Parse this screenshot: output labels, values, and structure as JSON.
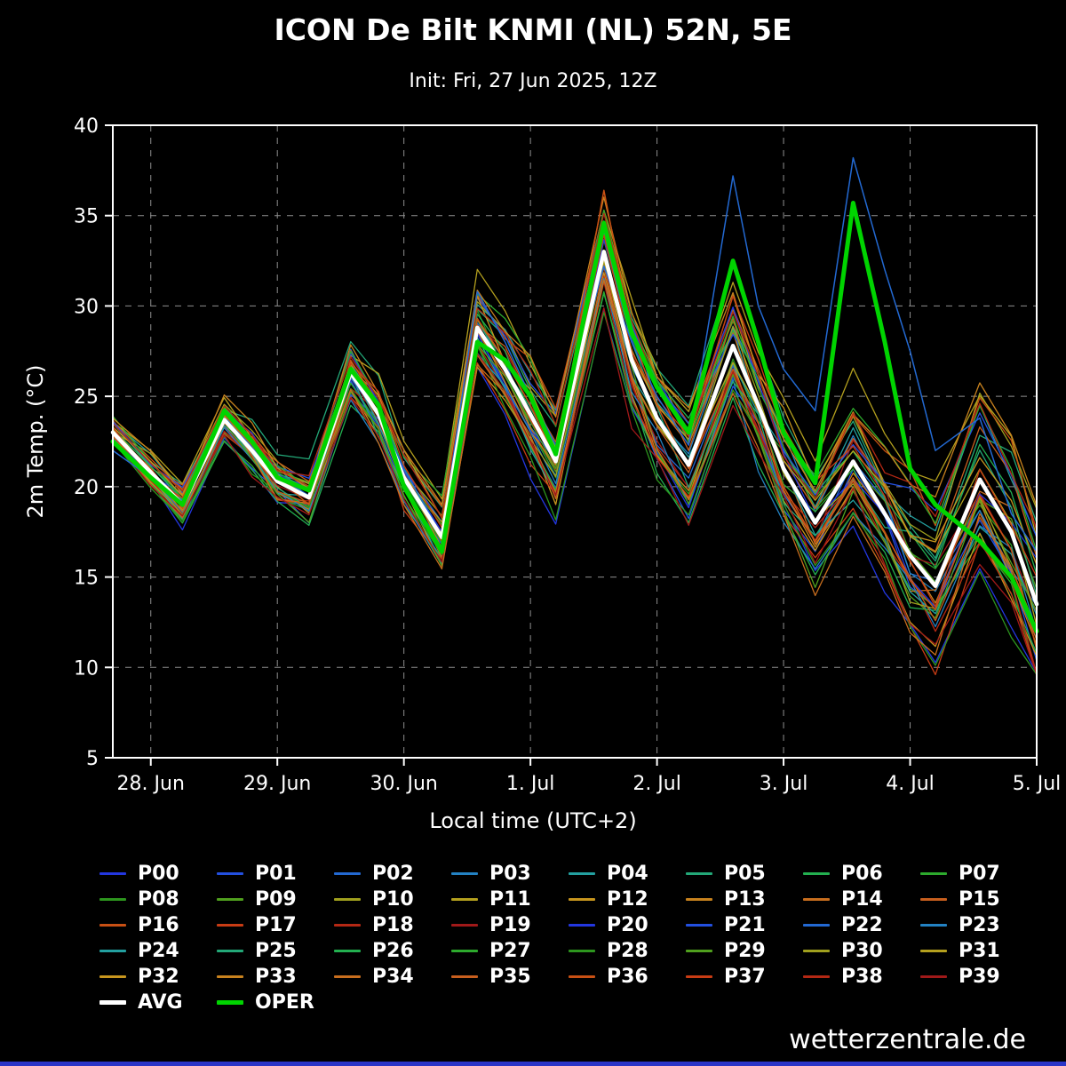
{
  "header": {
    "title": "ICON De Bilt KNMI (NL) 52N, 5E",
    "subtitle": "Init: Fri, 27 Jun 2025, 12Z"
  },
  "footer": {
    "brand": "wetterzentrale.de"
  },
  "legend": {
    "avg_label": "AVG",
    "oper_label": "OPER"
  },
  "chart_data": {
    "type": "line",
    "title": "ICON De Bilt KNMI (NL) 52N, 5E",
    "subtitle": "Init: Fri, 27 Jun 2025, 12Z",
    "xlabel": "Local time (UTC+2)",
    "ylabel": "2m Temp. (°C)",
    "ylim": [
      5,
      40
    ],
    "yticks": [
      5,
      10,
      15,
      20,
      25,
      30,
      35,
      40
    ],
    "xlim_days": [
      -0.3,
      7
    ],
    "grid": true,
    "legend_position": "bottom",
    "xticks": [
      {
        "day": 0,
        "label": "28. Jun"
      },
      {
        "day": 1,
        "label": "29. Jun"
      },
      {
        "day": 2,
        "label": "30. Jun"
      },
      {
        "day": 3,
        "label": "1. Jul"
      },
      {
        "day": 4,
        "label": "2. Jul"
      },
      {
        "day": 5,
        "label": "3. Jul"
      },
      {
        "day": 6,
        "label": "4. Jul"
      },
      {
        "day": 7,
        "label": "5. Jul"
      }
    ],
    "x_days": [
      -0.3,
      0.0,
      0.25,
      0.58,
      0.8,
      1.0,
      1.25,
      1.58,
      1.8,
      2.0,
      2.3,
      2.58,
      2.8,
      3.0,
      3.2,
      3.58,
      3.8,
      4.0,
      4.25,
      4.6,
      4.8,
      5.0,
      5.25,
      5.55,
      5.8,
      6.0,
      6.2,
      6.55,
      6.8,
      7.0
    ],
    "series": [
      {
        "name": "AVG",
        "color": "#ffffff",
        "width": 4.5,
        "values": [
          23.0,
          20.8,
          19.0,
          23.7,
          22.0,
          20.3,
          19.4,
          26.3,
          24.0,
          20.5,
          17.2,
          28.8,
          26.5,
          24.0,
          21.4,
          33.0,
          27.0,
          23.8,
          21.2,
          27.8,
          24.5,
          21.0,
          18.0,
          21.4,
          18.5,
          16.2,
          14.5,
          20.4,
          17.5,
          13.5
        ]
      },
      {
        "name": "OPER",
        "color": "#00d400",
        "width": 5,
        "values": [
          22.5,
          20.5,
          19.0,
          24.2,
          22.5,
          20.5,
          19.8,
          26.5,
          24.5,
          20.0,
          16.4,
          28.0,
          27.0,
          25.0,
          21.8,
          34.6,
          28.5,
          25.5,
          23.0,
          32.5,
          28.0,
          23.0,
          20.2,
          35.7,
          28.0,
          21.0,
          19.0,
          17.0,
          15.0,
          12.0
        ]
      }
    ],
    "featured_members": [
      {
        "name": "P22",
        "color": "#2369d2",
        "values": [
          22.0,
          20.5,
          19.2,
          23.8,
          22.2,
          20.6,
          19.5,
          26.0,
          24.0,
          21.0,
          17.3,
          30.8,
          28.0,
          25.0,
          22.3,
          32.2,
          28.0,
          25.0,
          22.3,
          37.2,
          30.0,
          26.5,
          24.2,
          38.2,
          32.0,
          27.5,
          22.0,
          23.8,
          18.5,
          16.4
        ]
      },
      {
        "name": "P36",
        "color": "#c85014",
        "values": [
          23.0,
          21.0,
          18.8,
          24.0,
          22.3,
          20.5,
          19.0,
          27.0,
          24.5,
          20.5,
          17.0,
          29.3,
          27.0,
          24.5,
          21.5,
          36.4,
          28.5,
          24.5,
          21.0,
          26.5,
          23.5,
          20.0,
          17.0,
          20.5,
          17.5,
          14.8,
          13.2,
          19.5,
          16.5,
          11.0
        ]
      }
    ],
    "members": [
      {
        "name": "P00",
        "color": "#2337e0"
      },
      {
        "name": "P01",
        "color": "#2350e0"
      },
      {
        "name": "P02",
        "color": "#2369d2"
      },
      {
        "name": "P03",
        "color": "#2382c3"
      },
      {
        "name": "P04",
        "color": "#23a0a0"
      },
      {
        "name": "P05",
        "color": "#23a878"
      },
      {
        "name": "P06",
        "color": "#23b050"
      },
      {
        "name": "P07",
        "color": "#2daa2d"
      },
      {
        "name": "P08",
        "color": "#2d961e"
      },
      {
        "name": "P09",
        "color": "#50a01e"
      },
      {
        "name": "P10",
        "color": "#a0a01e"
      },
      {
        "name": "P11",
        "color": "#b4a01e"
      },
      {
        "name": "P12",
        "color": "#c8961e"
      },
      {
        "name": "P13",
        "color": "#c8821e"
      },
      {
        "name": "P14",
        "color": "#c86e1e"
      },
      {
        "name": "P15",
        "color": "#c85f1e"
      },
      {
        "name": "P16",
        "color": "#c85014"
      },
      {
        "name": "P17",
        "color": "#c83c14"
      },
      {
        "name": "P18",
        "color": "#b42814"
      },
      {
        "name": "P19",
        "color": "#a01919"
      },
      {
        "name": "P20",
        "color": "#2337e0"
      },
      {
        "name": "P21",
        "color": "#2350e0"
      },
      {
        "name": "P22",
        "color": "#2369d2"
      },
      {
        "name": "P23",
        "color": "#2382c3"
      },
      {
        "name": "P24",
        "color": "#23a0a0"
      },
      {
        "name": "P25",
        "color": "#23a878"
      },
      {
        "name": "P26",
        "color": "#23b050"
      },
      {
        "name": "P27",
        "color": "#2daa2d"
      },
      {
        "name": "P28",
        "color": "#2d961e"
      },
      {
        "name": "P29",
        "color": "#50a01e"
      },
      {
        "name": "P30",
        "color": "#a0a01e"
      },
      {
        "name": "P31",
        "color": "#b4a01e"
      },
      {
        "name": "P32",
        "color": "#c8961e"
      },
      {
        "name": "P33",
        "color": "#c8821e"
      },
      {
        "name": "P34",
        "color": "#c86e1e"
      },
      {
        "name": "P35",
        "color": "#c85f1e"
      },
      {
        "name": "P36",
        "color": "#c85014"
      },
      {
        "name": "P37",
        "color": "#c83c14"
      },
      {
        "name": "P38",
        "color": "#b42814"
      },
      {
        "name": "P39",
        "color": "#a01919"
      }
    ],
    "member_spread": {
      "start": 0.55,
      "per_day": 0.6,
      "min": 9.6,
      "max": 38.0
    }
  }
}
